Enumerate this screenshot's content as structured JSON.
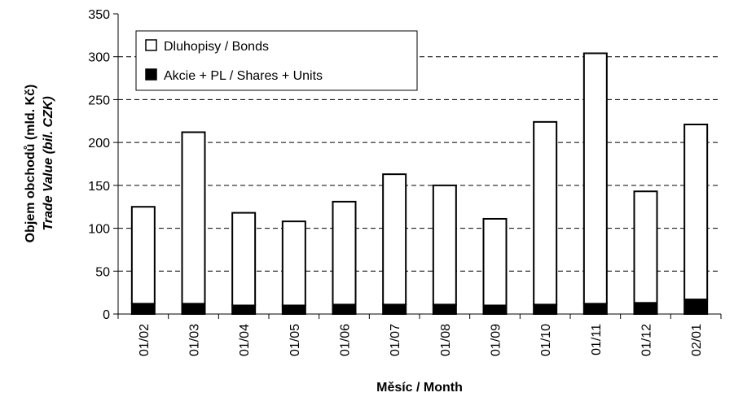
{
  "chart_data": {
    "type": "stacked_bar",
    "ylabel": [
      "Objem obchodů (mld. Kč)",
      "Trade Value (bil. CZK)"
    ],
    "xlabel": "Měsíc / Month",
    "categories": [
      "01/02",
      "01/03",
      "01/04",
      "01/05",
      "01/06",
      "01/07",
      "01/08",
      "01/09",
      "01/10",
      "01/11",
      "01/12",
      "02/01"
    ],
    "series": [
      {
        "name": "Akcie + PL / Shares + Units",
        "color": "#000000",
        "values": [
          12,
          12,
          10,
          10,
          11,
          11,
          11,
          10,
          11,
          12,
          13,
          17
        ]
      },
      {
        "name": "Dluhopisy / Bonds",
        "color": "#ffffff",
        "values": [
          113,
          200,
          108,
          98,
          120,
          152,
          139,
          101,
          213,
          292,
          130,
          204
        ]
      }
    ],
    "ylim": [
      0,
      350
    ],
    "yticks": [
      0,
      50,
      100,
      150,
      200,
      250,
      300,
      350
    ],
    "grid": true
  }
}
